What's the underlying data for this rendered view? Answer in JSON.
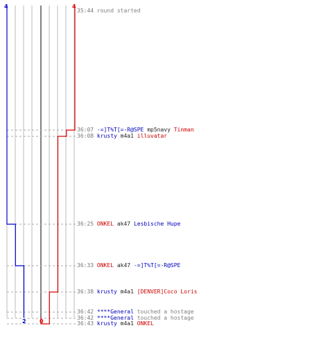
{
  "colors": {
    "team_blue": "#0000cc",
    "team_red": "#dd0000",
    "grid": "#bbbbbb",
    "center": "#555555",
    "dash": "#aaaaaa",
    "time": "#777777"
  },
  "scores": {
    "blue_start": "4",
    "red_start": "4",
    "blue_end": "2",
    "red_end": "0"
  },
  "events": [
    {
      "time": "35:44",
      "type": "message",
      "text": "round started"
    },
    {
      "time": "36:07",
      "type": "kill",
      "killer": "-=]T%T[=-R@SPE",
      "killer_team": "blue",
      "weapon": "mp5navy",
      "victim": "Tinman",
      "victim_team": "red"
    },
    {
      "time": "36:08",
      "type": "kill",
      "killer": "krusty",
      "killer_team": "blue",
      "weapon": "m4a1",
      "victim": "illuvatar",
      "victim_team": "red"
    },
    {
      "time": "36:25",
      "type": "kill",
      "killer": "ONKEL",
      "killer_team": "red",
      "weapon": "ak47",
      "victim": "Lesbische Hupe",
      "victim_team": "blue"
    },
    {
      "time": "36:33",
      "type": "kill",
      "killer": "ONKEL",
      "killer_team": "red",
      "weapon": "ak47",
      "victim": "-=]T%T[=-R@SPE",
      "victim_team": "blue"
    },
    {
      "time": "36:38",
      "type": "kill",
      "killer": "krusty",
      "killer_team": "blue",
      "weapon": "m4a1",
      "victim": "[DENVER]Coco Loris",
      "victim_team": "red"
    },
    {
      "time": "36:42",
      "type": "action",
      "actor": "****General",
      "actor_team": "blue",
      "text": "touched a hostage"
    },
    {
      "time": "36:42",
      "type": "action",
      "actor": "****General",
      "actor_team": "blue",
      "text": "touched a hostage"
    },
    {
      "time": "36:43",
      "type": "kill",
      "killer": "krusty",
      "killer_team": "blue",
      "weapon": "m4a1",
      "victim": "ONKEL",
      "victim_team": "red"
    }
  ]
}
